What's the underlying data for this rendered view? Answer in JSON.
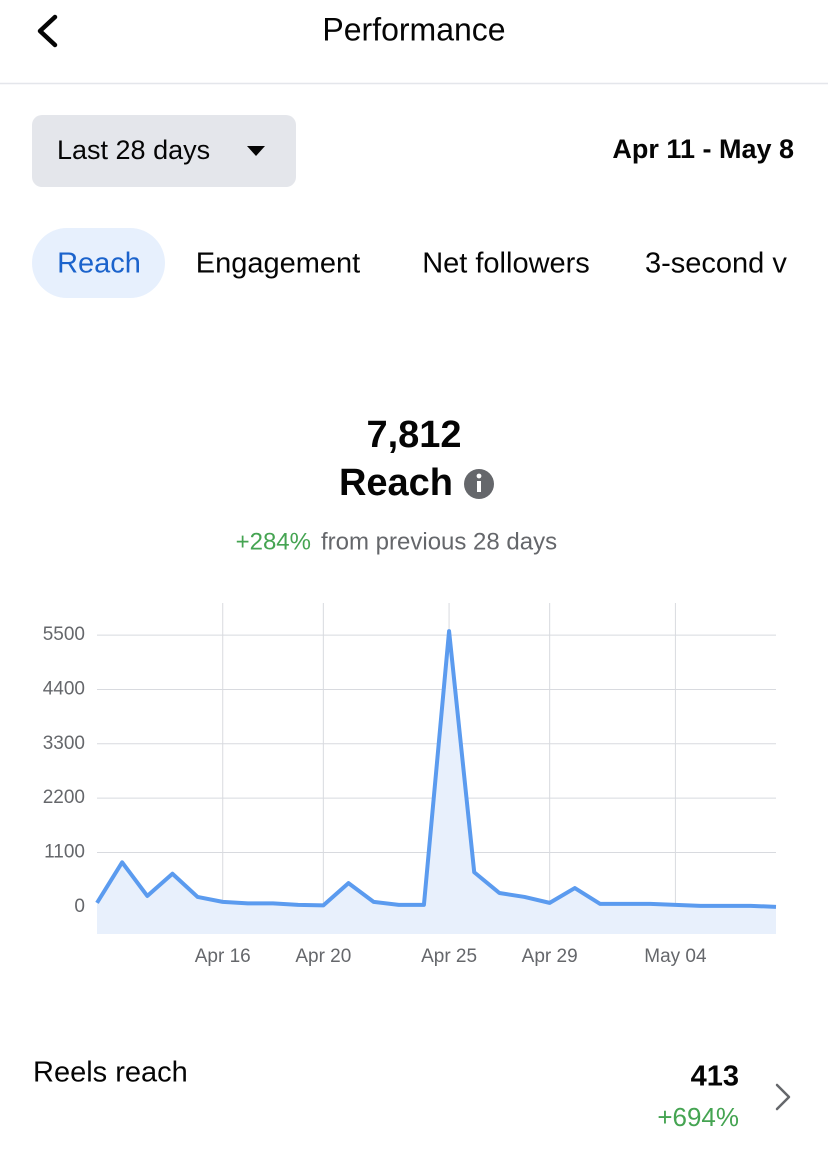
{
  "header": {
    "title": "Performance"
  },
  "filter": {
    "period": "Last 28 days",
    "range": "Apr 11 - May 8"
  },
  "tabs": [
    "Reach",
    "Engagement",
    "Net followers",
    "3-second v"
  ],
  "summary": {
    "value": "7,812",
    "label": "Reach",
    "change": "+284%",
    "change_note": "from previous 28 days"
  },
  "chart_data": {
    "type": "line",
    "categories": [
      null,
      null,
      null,
      null,
      null,
      "Apr 16",
      null,
      null,
      null,
      "Apr 20",
      null,
      null,
      null,
      null,
      "Apr 25",
      null,
      null,
      null,
      "Apr 29",
      null,
      null,
      null,
      null,
      "May 04",
      null,
      null,
      null,
      null
    ],
    "values": [
      80,
      900,
      220,
      670,
      200,
      100,
      70,
      70,
      40,
      30,
      480,
      100,
      40,
      40,
      5580,
      700,
      280,
      200,
      80,
      380,
      60,
      60,
      60,
      40,
      20,
      20,
      20,
      0
    ],
    "color": "#5b9bef",
    "ylim": [
      -550,
      6150
    ],
    "yticks": [
      0,
      1100,
      2200,
      3300,
      4400,
      5500
    ],
    "grid": true
  },
  "metric": {
    "label": "Reels reach",
    "value": "413",
    "change": "+694%"
  }
}
